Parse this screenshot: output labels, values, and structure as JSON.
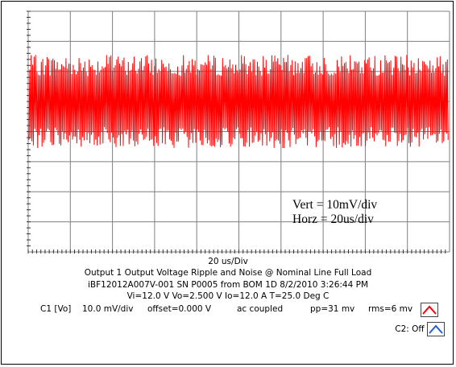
{
  "chart_data": {
    "type": "line",
    "xlabel": "20 us/Div",
    "divisions": {
      "x": 10,
      "y": 8
    },
    "series": [
      {
        "values_note_units": "mV"
      }
    ],
    "waveform": {
      "channel": "C1 [Vo]",
      "baseline_div": 5,
      "peak_to_peak_mV": 31,
      "rms_mV": 6,
      "duration_us": 200,
      "color": "#ff0000"
    },
    "annotations": {
      "vert": "Vert = 10mV/div",
      "horz": "Horz = 20us/div"
    }
  },
  "caption": {
    "line1": "Output 1 Output Voltage Ripple and Noise @ Nominal Line Full Load",
    "line2": "iBF12012A007V-001  SN P0005  from BOM 1D   8/2/2010 3:26:44 PM",
    "line3": "Vi=12.0 V   Vo=2.500 V   Io=12.0 A    T=25.0 Deg C"
  },
  "c1": {
    "name": "C1 [Vo]",
    "scale": "10.0 mV/div",
    "offset": "offset=0.000 V",
    "coupling": "ac coupled",
    "pp": "pp=31 mv",
    "rms": "rms=6 mv",
    "color": "#ff0000"
  },
  "c2": {
    "label": "C2: Off",
    "color": "#1f5fd0"
  }
}
